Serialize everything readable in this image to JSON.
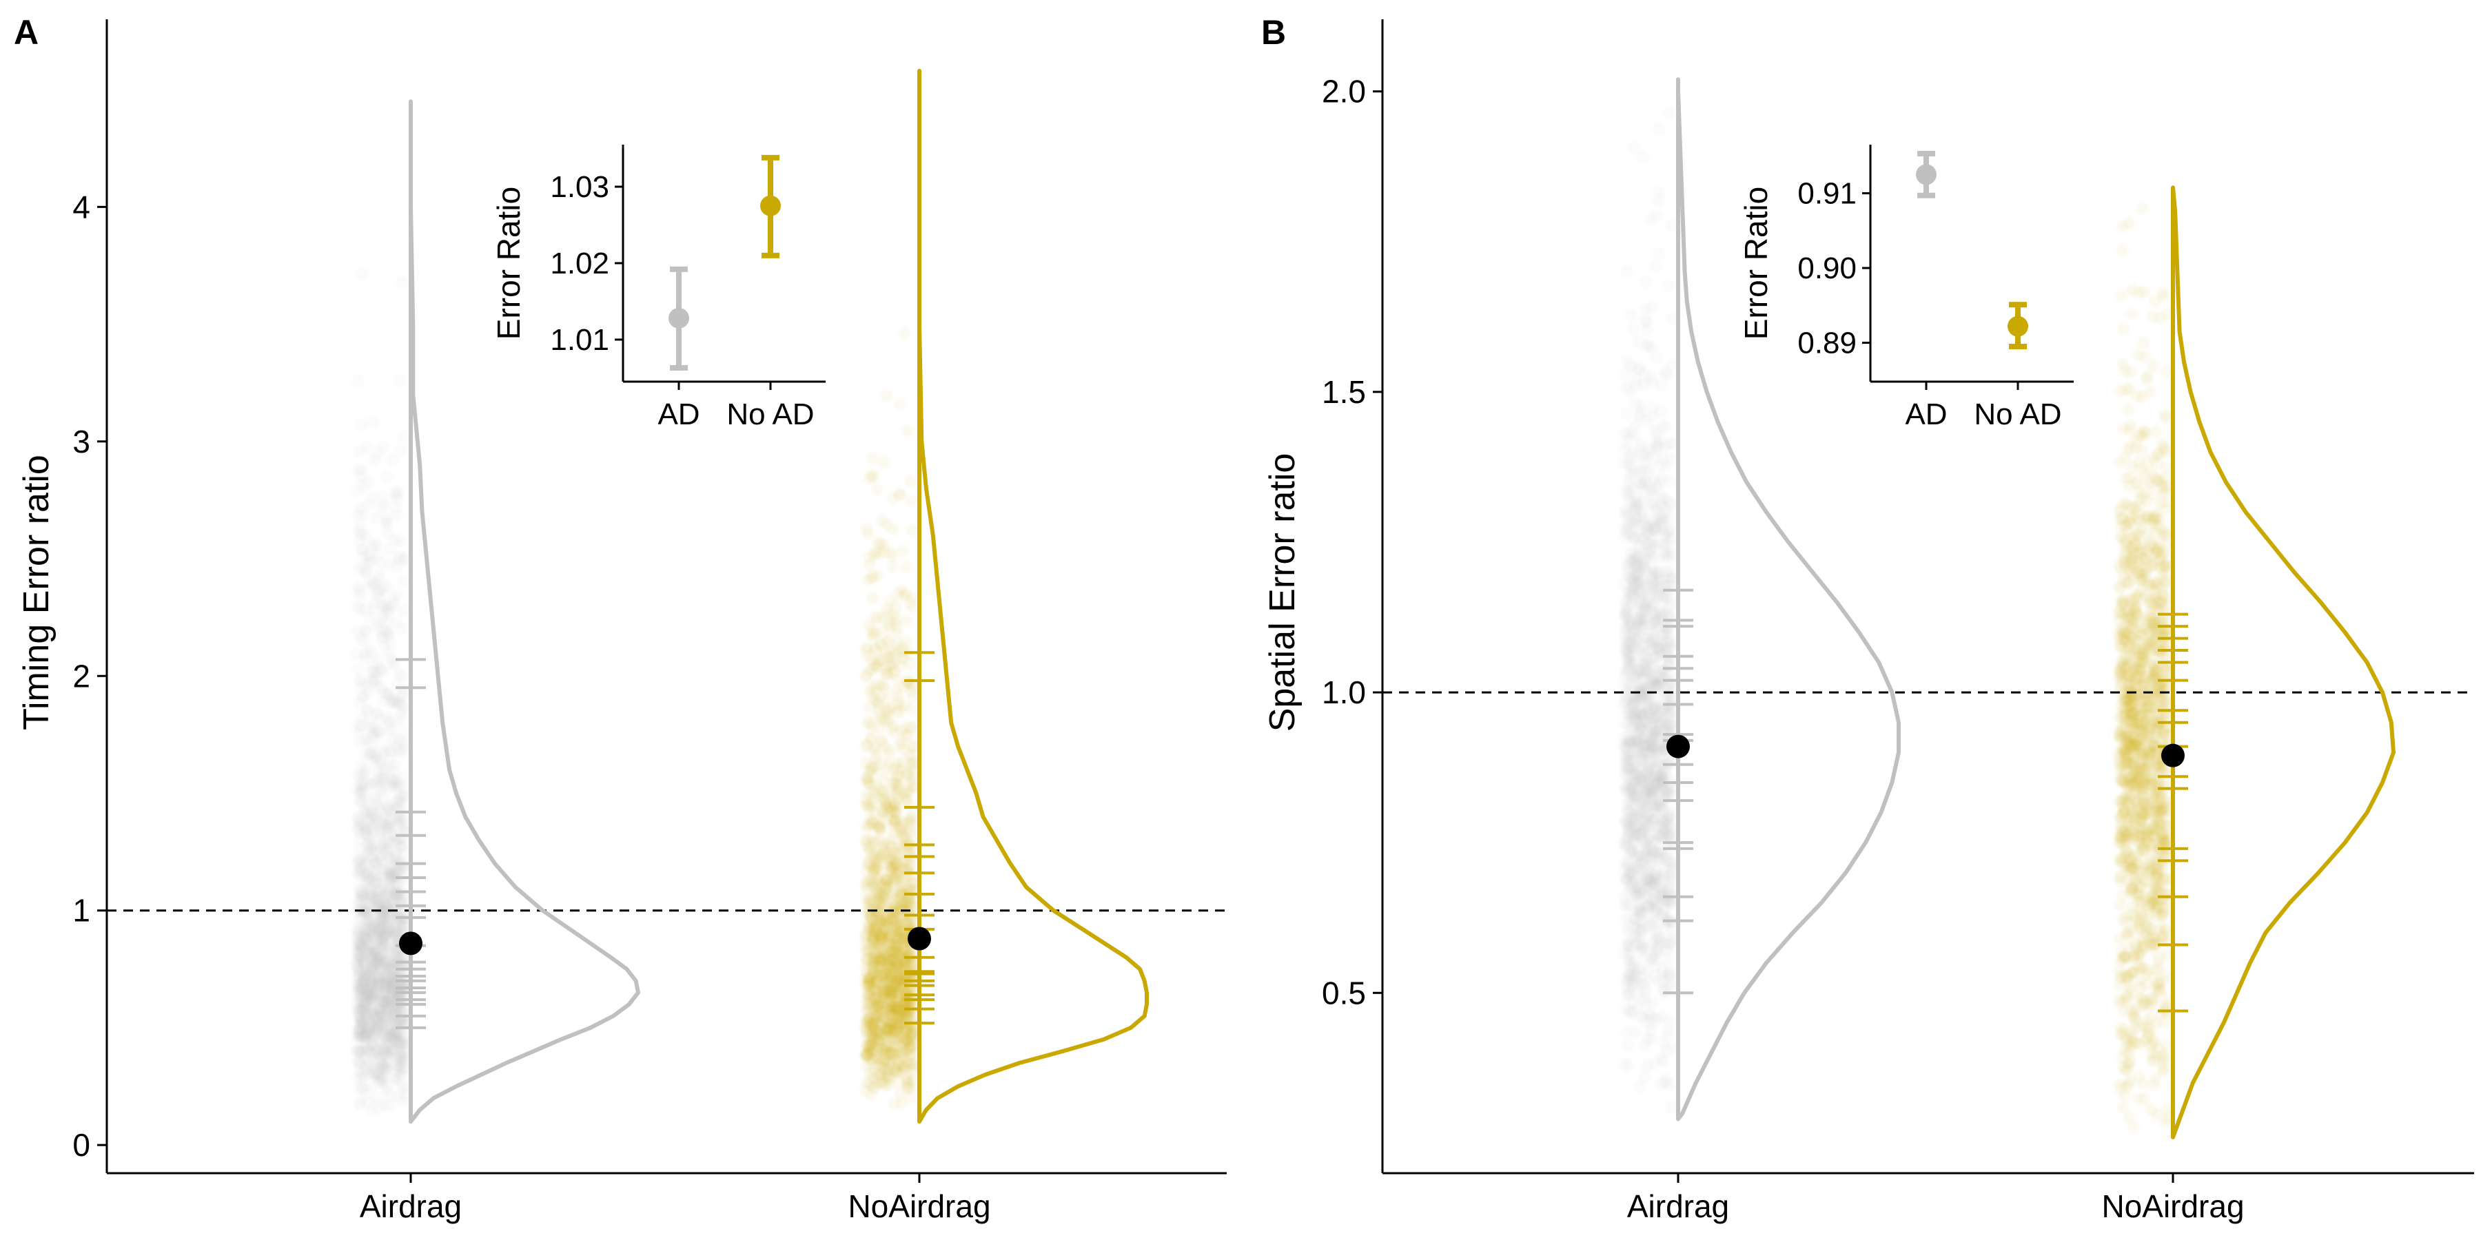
{
  "chart_data": [
    {
      "type": "raincloud",
      "panel": "A",
      "ylabel": "Timing Error ratio",
      "categories": [
        "Airdrag",
        "NoAirdrag"
      ],
      "ylim": [
        -0.12,
        4.8
      ],
      "yticks": [
        0,
        1,
        2,
        3,
        4
      ],
      "reference_line": 1,
      "grid": false,
      "colors": {
        "Airdrag": "#c0c0c0",
        "NoAirdrag": "#c9a800"
      },
      "groups": [
        {
          "name": "Airdrag",
          "mean": 0.86,
          "raw_range": [
            0.12,
            4.45
          ],
          "density": [
            [
              0.1,
              0.0
            ],
            [
              0.15,
              0.04
            ],
            [
              0.2,
              0.1
            ],
            [
              0.25,
              0.2
            ],
            [
              0.3,
              0.31
            ],
            [
              0.35,
              0.42
            ],
            [
              0.4,
              0.54
            ],
            [
              0.45,
              0.66
            ],
            [
              0.5,
              0.79
            ],
            [
              0.55,
              0.89
            ],
            [
              0.6,
              0.96
            ],
            [
              0.65,
              1.0
            ],
            [
              0.7,
              0.99
            ],
            [
              0.75,
              0.95
            ],
            [
              0.8,
              0.88
            ],
            [
              0.9,
              0.73
            ],
            [
              1.0,
              0.58
            ],
            [
              1.1,
              0.46
            ],
            [
              1.2,
              0.37
            ],
            [
              1.3,
              0.3
            ],
            [
              1.4,
              0.24
            ],
            [
              1.5,
              0.2
            ],
            [
              1.6,
              0.17
            ],
            [
              1.8,
              0.14
            ],
            [
              2.0,
              0.12
            ],
            [
              2.2,
              0.1
            ],
            [
              2.4,
              0.08
            ],
            [
              2.6,
              0.06
            ],
            [
              2.7,
              0.05
            ],
            [
              2.9,
              0.04
            ],
            [
              3.0,
              0.03
            ],
            [
              3.2,
              0.01
            ],
            [
              3.5,
              0.01
            ],
            [
              4.0,
              0.0
            ],
            [
              4.45,
              0.0
            ]
          ],
          "participant_means": [
            0.5,
            0.55,
            0.6,
            0.62,
            0.65,
            0.67,
            0.7,
            0.72,
            0.75,
            0.78,
            0.85,
            0.97,
            1.02,
            1.08,
            1.14,
            1.2,
            1.32,
            1.42,
            1.95,
            2.07
          ]
        },
        {
          "name": "NoAirdrag",
          "mean": 0.88,
          "raw_range": [
            0.1,
            4.58
          ],
          "density": [
            [
              0.1,
              0.0
            ],
            [
              0.15,
              0.03
            ],
            [
              0.2,
              0.08
            ],
            [
              0.25,
              0.17
            ],
            [
              0.3,
              0.29
            ],
            [
              0.35,
              0.44
            ],
            [
              0.4,
              0.63
            ],
            [
              0.45,
              0.81
            ],
            [
              0.5,
              0.93
            ],
            [
              0.55,
              0.99
            ],
            [
              0.6,
              1.0
            ],
            [
              0.65,
              1.0
            ],
            [
              0.7,
              0.99
            ],
            [
              0.75,
              0.97
            ],
            [
              0.8,
              0.91
            ],
            [
              0.9,
              0.75
            ],
            [
              1.0,
              0.59
            ],
            [
              1.1,
              0.47
            ],
            [
              1.2,
              0.4
            ],
            [
              1.3,
              0.34
            ],
            [
              1.4,
              0.28
            ],
            [
              1.5,
              0.25
            ],
            [
              1.6,
              0.21
            ],
            [
              1.7,
              0.17
            ],
            [
              1.8,
              0.14
            ],
            [
              2.0,
              0.12
            ],
            [
              2.2,
              0.1
            ],
            [
              2.4,
              0.08
            ],
            [
              2.6,
              0.06
            ],
            [
              2.8,
              0.03
            ],
            [
              3.0,
              0.01
            ],
            [
              3.5,
              0.0
            ],
            [
              4.58,
              0.0
            ]
          ],
          "participant_means": [
            0.52,
            0.58,
            0.62,
            0.64,
            0.68,
            0.7,
            0.73,
            0.74,
            0.8,
            0.92,
            0.98,
            1.07,
            1.16,
            1.23,
            1.28,
            1.44,
            1.98,
            2.1
          ]
        }
      ],
      "inset": {
        "type": "pointrange",
        "categories": [
          "AD",
          "No AD"
        ],
        "ylabel": "Error Ratio",
        "ylim": [
          1.0045,
          1.0355
        ],
        "yticks": [
          1.01,
          1.02,
          1.03
        ],
        "ytick_labels": [
          "1.01",
          "1.02",
          "1.03"
        ],
        "points": [
          {
            "name": "AD",
            "mean": 1.0128,
            "lower": 1.0063,
            "upper": 1.0192
          },
          {
            "name": "No AD",
            "mean": 1.0275,
            "lower": 1.021,
            "upper": 1.0338
          }
        ]
      }
    },
    {
      "type": "raincloud",
      "panel": "B",
      "ylabel": "Spatial Error ratio",
      "categories": [
        "Airdrag",
        "NoAirdrag"
      ],
      "ylim": [
        0.2,
        2.12
      ],
      "yticks": [
        0.5,
        1.0,
        1.5,
        2.0
      ],
      "ytick_labels": [
        "0.5",
        "1.0",
        "1.5",
        "2.0"
      ],
      "reference_line": 1,
      "grid": false,
      "colors": {
        "Airdrag": "#c0c0c0",
        "NoAirdrag": "#c9a800"
      },
      "groups": [
        {
          "name": "Airdrag",
          "mean": 0.91,
          "raw_range": [
            0.29,
            2.02
          ],
          "density": [
            [
              0.29,
              0.0
            ],
            [
              0.3,
              0.02
            ],
            [
              0.35,
              0.08
            ],
            [
              0.4,
              0.15
            ],
            [
              0.45,
              0.22
            ],
            [
              0.5,
              0.3
            ],
            [
              0.55,
              0.4
            ],
            [
              0.6,
              0.52
            ],
            [
              0.65,
              0.65
            ],
            [
              0.7,
              0.76
            ],
            [
              0.75,
              0.85
            ],
            [
              0.8,
              0.92
            ],
            [
              0.85,
              0.97
            ],
            [
              0.9,
              1.0
            ],
            [
              0.95,
              1.0
            ],
            [
              1.0,
              0.97
            ],
            [
              1.05,
              0.91
            ],
            [
              1.1,
              0.82
            ],
            [
              1.15,
              0.72
            ],
            [
              1.2,
              0.61
            ],
            [
              1.25,
              0.5
            ],
            [
              1.3,
              0.4
            ],
            [
              1.35,
              0.31
            ],
            [
              1.4,
              0.24
            ],
            [
              1.45,
              0.18
            ],
            [
              1.5,
              0.13
            ],
            [
              1.55,
              0.09
            ],
            [
              1.6,
              0.06
            ],
            [
              1.65,
              0.04
            ],
            [
              1.7,
              0.03
            ],
            [
              1.8,
              0.02
            ],
            [
              1.9,
              0.01
            ],
            [
              2.0,
              0.0
            ],
            [
              2.02,
              0.0
            ]
          ],
          "participant_means": [
            0.5,
            0.62,
            0.66,
            0.74,
            0.75,
            0.82,
            0.85,
            0.88,
            0.92,
            0.93,
            0.98,
            1.02,
            1.04,
            1.06,
            1.11,
            1.12,
            1.17
          ]
        },
        {
          "name": "NoAirdrag",
          "mean": 0.895,
          "raw_range": [
            0.26,
            1.84
          ],
          "density": [
            [
              0.26,
              0.0
            ],
            [
              0.3,
              0.04
            ],
            [
              0.35,
              0.09
            ],
            [
              0.4,
              0.16
            ],
            [
              0.45,
              0.23
            ],
            [
              0.5,
              0.29
            ],
            [
              0.55,
              0.35
            ],
            [
              0.6,
              0.42
            ],
            [
              0.65,
              0.53
            ],
            [
              0.7,
              0.66
            ],
            [
              0.75,
              0.78
            ],
            [
              0.8,
              0.88
            ],
            [
              0.85,
              0.95
            ],
            [
              0.9,
              1.0
            ],
            [
              0.95,
              0.99
            ],
            [
              1.0,
              0.95
            ],
            [
              1.05,
              0.88
            ],
            [
              1.1,
              0.78
            ],
            [
              1.15,
              0.67
            ],
            [
              1.2,
              0.55
            ],
            [
              1.25,
              0.44
            ],
            [
              1.3,
              0.33
            ],
            [
              1.35,
              0.24
            ],
            [
              1.4,
              0.17
            ],
            [
              1.45,
              0.12
            ],
            [
              1.5,
              0.08
            ],
            [
              1.55,
              0.05
            ],
            [
              1.6,
              0.03
            ],
            [
              1.7,
              0.02
            ],
            [
              1.8,
              0.01
            ],
            [
              1.84,
              0.0
            ]
          ],
          "participant_means": [
            0.47,
            0.58,
            0.66,
            0.72,
            0.74,
            0.84,
            0.86,
            0.91,
            0.95,
            0.97,
            1.02,
            1.05,
            1.07,
            1.09,
            1.11,
            1.13
          ]
        }
      ],
      "inset": {
        "type": "pointrange",
        "categories": [
          "AD",
          "No AD"
        ],
        "ylabel": "Error Ratio",
        "ylim": [
          0.8848,
          0.9165
        ],
        "yticks": [
          0.89,
          0.9,
          0.91
        ],
        "ytick_labels": [
          "0.89",
          "0.90",
          "0.91"
        ],
        "points": [
          {
            "name": "AD",
            "mean": 0.9125,
            "lower": 0.9097,
            "upper": 0.9153
          },
          {
            "name": "No AD",
            "mean": 0.8922,
            "lower": 0.8895,
            "upper": 0.8951
          }
        ]
      }
    }
  ]
}
